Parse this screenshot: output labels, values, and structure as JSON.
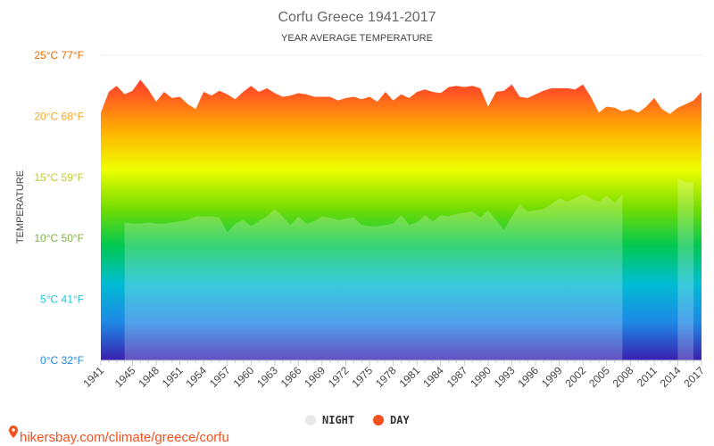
{
  "chart_data": {
    "type": "area",
    "title": "Corfu Greece 1941-2017",
    "subtitle": "YEAR AVERAGE TEMPERATURE",
    "ylabel": "TEMPERATURE",
    "ylim": [
      0,
      25
    ],
    "y_ticks": [
      {
        "value": 0,
        "label": "0°C 32°F",
        "color": "#1e88e5"
      },
      {
        "value": 5,
        "label": "5°C 41°F",
        "color": "#26c6da"
      },
      {
        "value": 10,
        "label": "10°C 50°F",
        "color": "#7cb342"
      },
      {
        "value": 15,
        "label": "15°C 59°F",
        "color": "#c0ca33"
      },
      {
        "value": 20,
        "label": "20°C 68°F",
        "color": "#f9a825"
      },
      {
        "value": 25,
        "label": "25°C 77°F",
        "color": "#ef6c00"
      }
    ],
    "x_tick_labels": [
      "1941",
      "1945",
      "1948",
      "1951",
      "1954",
      "1957",
      "1960",
      "1963",
      "1966",
      "1969",
      "1972",
      "1975",
      "1978",
      "1981",
      "1984",
      "1987",
      "1990",
      "1993",
      "1996",
      "1999",
      "2002",
      "2005",
      "2008",
      "2011",
      "2014",
      "2017"
    ],
    "x_range": [
      1941,
      2017
    ],
    "legend": [
      {
        "name": "NIGHT",
        "color": "#e8e8e8"
      },
      {
        "name": "DAY",
        "color": "#f4511e"
      }
    ],
    "legend_position": "bottom",
    "series": [
      {
        "name": "DAY",
        "x": [
          1941,
          1942,
          1943,
          1944,
          1945,
          1946,
          1947,
          1948,
          1949,
          1950,
          1951,
          1952,
          1953,
          1954,
          1955,
          1956,
          1957,
          1958,
          1959,
          1960,
          1961,
          1962,
          1963,
          1964,
          1965,
          1966,
          1967,
          1968,
          1969,
          1970,
          1971,
          1972,
          1973,
          1974,
          1975,
          1976,
          1977,
          1978,
          1979,
          1980,
          1981,
          1982,
          1983,
          1984,
          1985,
          1986,
          1987,
          1988,
          1989,
          1990,
          1991,
          1992,
          1993,
          1994,
          1995,
          1996,
          1997,
          1998,
          1999,
          2000,
          2001,
          2002,
          2003,
          2004,
          2005,
          2006,
          2007,
          2008,
          2009,
          2010,
          2011,
          2012,
          2013,
          2014,
          2015,
          2016,
          2017
        ],
        "values": [
          20.3,
          22.0,
          22.5,
          21.8,
          22.1,
          23.0,
          22.2,
          21.2,
          22.0,
          21.5,
          21.6,
          21.0,
          20.6,
          22.0,
          21.7,
          22.1,
          21.8,
          21.4,
          22.0,
          22.5,
          22.0,
          22.3,
          21.9,
          21.6,
          21.7,
          21.9,
          21.8,
          21.6,
          21.6,
          21.6,
          21.3,
          21.5,
          21.6,
          21.4,
          21.6,
          21.2,
          22.0,
          21.3,
          21.8,
          21.5,
          22.0,
          22.2,
          22.0,
          21.9,
          22.4,
          22.5,
          22.4,
          22.5,
          22.3,
          20.8,
          22.0,
          22.1,
          22.6,
          21.6,
          21.5,
          21.8,
          22.1,
          22.3,
          22.3,
          22.3,
          22.2,
          22.6,
          21.6,
          20.3,
          20.8,
          20.7,
          20.4,
          20.6,
          20.3,
          20.8,
          21.5,
          20.6,
          20.2,
          20.7,
          21.0,
          21.3,
          22.0
        ]
      },
      {
        "name": "NIGHT",
        "x": [
          1944,
          1945,
          1946,
          1947,
          1948,
          1949,
          1950,
          1951,
          1952,
          1953,
          1954,
          1955,
          1956,
          1957,
          1958,
          1959,
          1960,
          1961,
          1962,
          1963,
          1964,
          1965,
          1966,
          1967,
          1968,
          1969,
          1970,
          1971,
          1972,
          1973,
          1974,
          1975,
          1976,
          1977,
          1978,
          1979,
          1980,
          1981,
          1982,
          1983,
          1984,
          1985,
          1986,
          1987,
          1988,
          1989,
          1990,
          1991,
          1992,
          1993,
          1994,
          1995,
          1996,
          1997,
          1998,
          1999,
          2000,
          2001,
          2002,
          2003,
          2004,
          2005,
          2006,
          2007,
          2014,
          2015,
          2016
        ],
        "values": [
          11.3,
          11.2,
          11.2,
          11.3,
          11.2,
          11.2,
          11.3,
          11.4,
          11.5,
          11.8,
          11.8,
          11.8,
          11.7,
          10.5,
          11.2,
          11.5,
          11.0,
          11.4,
          11.8,
          12.4,
          11.8,
          11.1,
          11.8,
          11.2,
          11.4,
          11.8,
          11.7,
          11.5,
          11.6,
          11.7,
          11.1,
          11.0,
          11.0,
          11.1,
          11.2,
          11.9,
          11.1,
          11.3,
          11.9,
          11.4,
          11.9,
          11.8,
          12.0,
          12.1,
          12.2,
          11.7,
          12.3,
          11.5,
          10.7,
          11.8,
          12.8,
          12.2,
          12.3,
          12.4,
          12.8,
          13.3,
          13.0,
          13.3,
          13.6,
          13.3,
          13.0,
          13.5,
          12.9,
          13.6,
          14.9,
          14.6,
          14.6
        ]
      }
    ],
    "grid": true,
    "gradient_colors": [
      "#3a1fb0",
      "#1e88e5",
      "#00bcd4",
      "#00c853",
      "#76dd00",
      "#eeff00",
      "#ffb300",
      "#ff5722",
      "#ff1744"
    ]
  },
  "footer": {
    "source_text": "hikersbay.com/climate/greece/corfu"
  }
}
